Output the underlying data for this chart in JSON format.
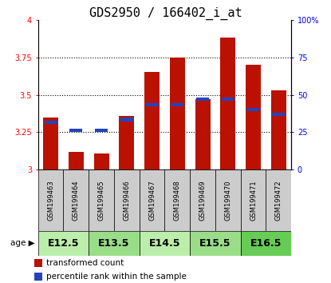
{
  "title": "GDS2950 / 166402_i_at",
  "samples": [
    "GSM199463",
    "GSM199464",
    "GSM199465",
    "GSM199466",
    "GSM199467",
    "GSM199468",
    "GSM199469",
    "GSM199470",
    "GSM199471",
    "GSM199472"
  ],
  "transformed_count": [
    3.35,
    3.12,
    3.11,
    3.36,
    3.65,
    3.75,
    3.47,
    3.88,
    3.7,
    3.53
  ],
  "percentile_rank": [
    3.315,
    3.265,
    3.265,
    3.335,
    3.435,
    3.435,
    3.47,
    3.47,
    3.4,
    3.37
  ],
  "age_groups": [
    {
      "label": "E12.5",
      "start": 0,
      "end": 2,
      "color": "#bbeeaa"
    },
    {
      "label": "E13.5",
      "start": 2,
      "end": 4,
      "color": "#99dd88"
    },
    {
      "label": "E14.5",
      "start": 4,
      "end": 6,
      "color": "#bbeeaa"
    },
    {
      "label": "E15.5",
      "start": 6,
      "end": 8,
      "color": "#99dd88"
    },
    {
      "label": "E16.5",
      "start": 8,
      "end": 10,
      "color": "#66cc55"
    }
  ],
  "ylim_left": [
    3.0,
    4.0
  ],
  "ylim_right": [
    0,
    100
  ],
  "bar_color": "#bb1100",
  "blue_color": "#2244bb",
  "bar_width": 0.6,
  "sample_box_color": "#cccccc",
  "yticks_left": [
    3.0,
    3.25,
    3.5,
    3.75,
    4.0
  ],
  "yticks_right": [
    0,
    25,
    50,
    75,
    100
  ],
  "ytick_labels_left": [
    "3",
    "3.25",
    "3.5",
    "3.75",
    "4"
  ],
  "ytick_labels_right": [
    "0",
    "25",
    "50",
    "75",
    "100%"
  ],
  "grid_vals": [
    3.25,
    3.5,
    3.75
  ],
  "title_fontsize": 11,
  "tick_fontsize": 7,
  "sample_fontsize": 6,
  "age_fontsize": 9,
  "legend_fontsize": 7.5
}
